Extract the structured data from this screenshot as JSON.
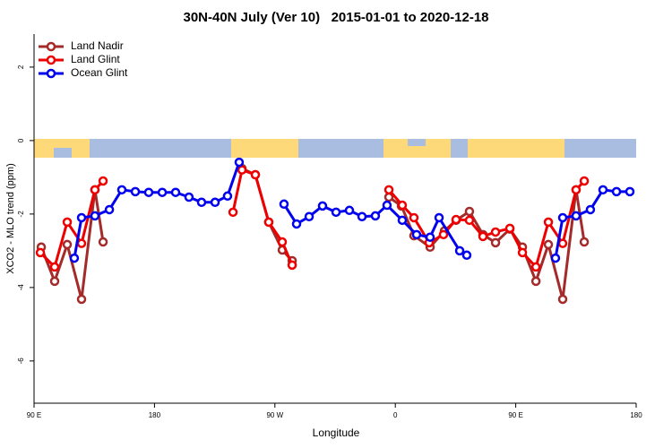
{
  "chart_data": {
    "type": "line",
    "title": "30N-40N July (Ver 10)   2015-01-01 to 2020-12-18",
    "x_label": "Longitude",
    "y_label": "XCO2 - MLO trend (ppm)",
    "xlim": [
      90,
      540
    ],
    "ylim": [
      -7.15,
      2.9
    ],
    "xticks": [
      {
        "value": 90,
        "label": "90 E"
      },
      180,
      {
        "value": 270,
        "label": "90 W"
      },
      0,
      {
        "value": 450,
        "label": "90 E"
      },
      {
        "value": 540,
        "label": "180"
      }
    ],
    "yticks": [
      -6,
      -4,
      -2,
      0,
      2
    ],
    "legend": "top-left",
    "series": [
      {
        "name": "Land Nadir",
        "color": "#a52a2a",
        "x": [
          95.4,
          105.4,
          114.8,
          125.5,
          135.5,
          141.6,
          null,
          245.4,
          255.4,
          265.4,
          275.5,
          282.9,
          null,
          355.2,
          364.6,
          373.9,
          386,
          396.7,
          405.4,
          415.4,
          425.5,
          434.9,
          445.6,
          455,
          465.1,
          474.4,
          485.1,
          495.1,
          501.2
        ],
        "values": [
          -2.9,
          -3.83,
          -2.83,
          -4.32,
          -1.34,
          -2.76,
          null,
          -0.76,
          -0.93,
          -2.22,
          -2.98,
          -3.27,
          null,
          -1.54,
          -1.78,
          -2.59,
          -2.9,
          -2.46,
          -2.17,
          -1.93,
          -2.56,
          -2.78,
          -2.41,
          -2.9,
          -3.83,
          -2.83,
          -4.32,
          -1.34,
          -2.76
        ]
      },
      {
        "name": "Land Glint",
        "color": "#ee0000",
        "x": [
          94.7,
          105.4,
          114.8,
          125.5,
          135.5,
          141.6,
          null,
          238.7,
          245.4,
          255.4,
          265.4,
          275.5,
          282.9,
          null,
          355.2,
          365.2,
          373.9,
          385.3,
          396,
          405.4,
          415.4,
          425.5,
          434.9,
          445.6,
          455,
          465.1,
          474.4,
          485.1,
          495.1,
          501.2
        ],
        "values": [
          -3.05,
          -3.44,
          -2.22,
          -2.8,
          -1.34,
          -1.1,
          null,
          -1.95,
          -0.8,
          -0.93,
          -2.22,
          -2.76,
          -3.39,
          null,
          -1.34,
          -1.76,
          -2.1,
          -2.78,
          -2.56,
          -2.15,
          -2.17,
          -2.61,
          -2.49,
          -2.39,
          -3.05,
          -3.44,
          -2.22,
          -2.8,
          -1.34,
          -1.1
        ]
      },
      {
        "name": "Ocean Glint",
        "color": "#0000ee",
        "x": [
          120.1,
          125.5,
          135.5,
          146.3,
          155.6,
          165.7,
          175.7,
          185.8,
          195.8,
          205.8,
          215.2,
          225.3,
          234.6,
          243.3,
          null,
          276.8,
          286.2,
          295.6,
          305.6,
          315.7,
          325.7,
          335.1,
          345.1,
          353.8,
          365.2,
          375.9,
          386,
          392.7,
          408.1,
          413.4,
          null,
          479.7,
          485.1,
          495.1,
          505.8,
          515.2,
          525.3,
          535.3
        ],
        "values": [
          -3.2,
          -2.1,
          -2.05,
          -1.88,
          -1.34,
          -1.39,
          -1.41,
          -1.41,
          -1.41,
          -1.54,
          -1.68,
          -1.68,
          -1.51,
          -0.59,
          null,
          -1.73,
          -2.27,
          -2.07,
          -1.78,
          -1.95,
          -1.9,
          -2.07,
          -2.05,
          -1.76,
          -2.17,
          -2.56,
          -2.63,
          -2.1,
          -3.0,
          -3.12,
          null,
          -3.2,
          -2.1,
          -2.05,
          -1.88,
          -1.34,
          -1.39,
          -1.39
        ]
      }
    ]
  }
}
